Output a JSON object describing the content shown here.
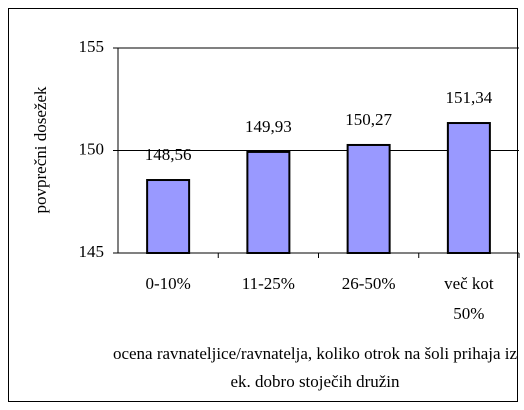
{
  "chart_data": {
    "type": "bar",
    "categories": [
      "0-10%",
      "11-25%",
      "26-50%",
      "več kot 50%"
    ],
    "values": [
      148.56,
      149.93,
      150.27,
      151.34
    ],
    "value_labels": [
      "148,56",
      "149,93",
      "150,27",
      "151,34"
    ],
    "color": "#9999ff",
    "ylim": [
      145,
      155
    ],
    "yticks": [
      145,
      150,
      155
    ],
    "grid": true,
    "ylabel": "povprečni dosežek",
    "xlabel": "ocena ravnateljice/ravnatelja, koliko otrok na šoli prihaja iz ek. dobro stoječih družin"
  }
}
